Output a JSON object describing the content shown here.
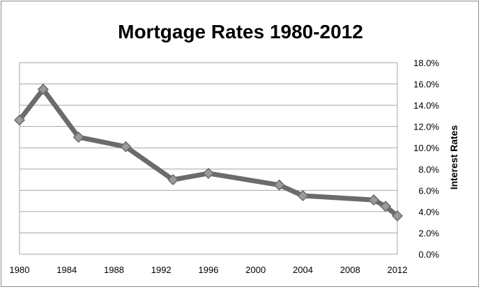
{
  "chart_data": {
    "type": "line",
    "title": "Mortgage Rates 1980-2012",
    "xlabel": "",
    "ylabel": "Interest Rates",
    "x_ticks": [
      "1980",
      "1984",
      "1988",
      "1992",
      "1996",
      "2000",
      "2004",
      "2008",
      "2012"
    ],
    "y_ticks": [
      "0.0%",
      "2.0%",
      "4.0%",
      "6.0%",
      "8.0%",
      "10.0%",
      "12.0%",
      "14.0%",
      "16.0%",
      "18.0%"
    ],
    "xlim": [
      1980,
      2012
    ],
    "ylim": [
      0,
      18
    ],
    "y_axis_side": "right",
    "grid": "horizontal",
    "legend": "none",
    "series": [
      {
        "marker": "diamond",
        "x": [
          1980,
          1982,
          1985,
          1989,
          1993,
          1996,
          2002,
          2004,
          2010,
          2011,
          2012
        ],
        "values": [
          12.6,
          15.5,
          11.0,
          10.1,
          7.0,
          7.6,
          6.5,
          5.5,
          5.1,
          4.5,
          3.6
        ]
      }
    ],
    "colors": {
      "line": "#6b6b6b",
      "marker_fill": "#9a9a9a",
      "marker_stroke": "#6b6b6b",
      "grid": "#a6a6a6"
    }
  }
}
